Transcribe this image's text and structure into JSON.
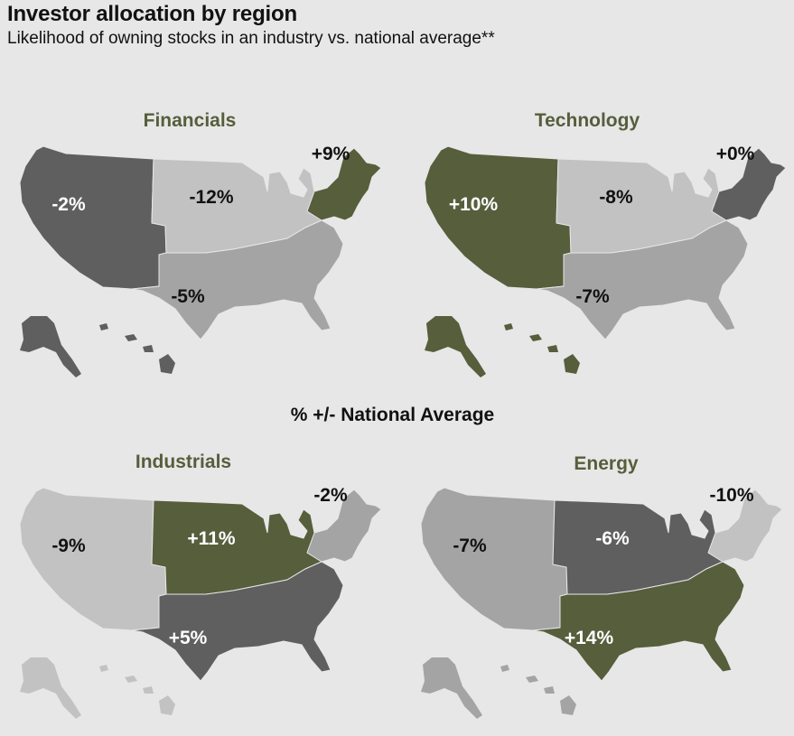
{
  "title": "Investor allocation by region",
  "subtitle": "Likelihood of owning stocks in an industry vs. national average**",
  "center_label": "% +/- National Average",
  "colors": {
    "background": "#e7e7e7",
    "strong_positive": "#565e3c",
    "dark": "#5f5f5f",
    "mid": "#a4a4a4",
    "light": "#c2c2c2"
  },
  "panels": [
    {
      "name": "Financials",
      "regions": {
        "west": {
          "value": "-2%",
          "color": "#5f5f5f",
          "text": "#ffffff"
        },
        "midwest": {
          "value": "-12%",
          "color": "#c2c2c2",
          "text": "#111111"
        },
        "south": {
          "value": "-5%",
          "color": "#a4a4a4",
          "text": "#111111"
        },
        "northeast": {
          "value": "+9%",
          "color": "#565e3c",
          "text": "#111111"
        }
      },
      "alaska_hawaii_color": "#5f5f5f"
    },
    {
      "name": "Technology",
      "regions": {
        "west": {
          "value": "+10%",
          "color": "#565e3c",
          "text": "#ffffff"
        },
        "midwest": {
          "value": "-8%",
          "color": "#c2c2c2",
          "text": "#111111"
        },
        "south": {
          "value": "-7%",
          "color": "#a4a4a4",
          "text": "#111111"
        },
        "northeast": {
          "value": "+0%",
          "color": "#5f5f5f",
          "text": "#111111"
        }
      },
      "alaska_hawaii_color": "#565e3c"
    },
    {
      "name": "Industrials",
      "regions": {
        "west": {
          "value": "-9%",
          "color": "#c2c2c2",
          "text": "#111111"
        },
        "midwest": {
          "value": "+11%",
          "color": "#565e3c",
          "text": "#ffffff"
        },
        "south": {
          "value": "+5%",
          "color": "#5f5f5f",
          "text": "#ffffff"
        },
        "northeast": {
          "value": "-2%",
          "color": "#a4a4a4",
          "text": "#111111"
        }
      },
      "alaska_hawaii_color": "#c2c2c2"
    },
    {
      "name": "Energy",
      "regions": {
        "west": {
          "value": "-7%",
          "color": "#a4a4a4",
          "text": "#111111"
        },
        "midwest": {
          "value": "-6%",
          "color": "#5f5f5f",
          "text": "#ffffff"
        },
        "south": {
          "value": "+14%",
          "color": "#565e3c",
          "text": "#ffffff"
        },
        "northeast": {
          "value": "-10%",
          "color": "#c2c2c2",
          "text": "#111111"
        }
      },
      "alaska_hawaii_color": "#a4a4a4"
    }
  ]
}
